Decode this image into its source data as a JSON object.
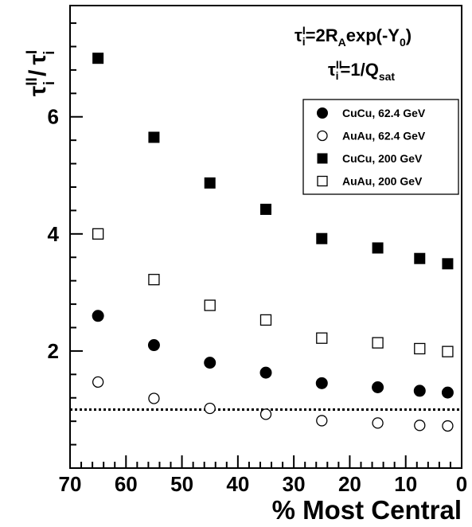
{
  "chart_data": {
    "type": "scatter",
    "xlabel": "% Most Central",
    "ylabel_main": "τ",
    "ylabel_sup_num": "II",
    "ylabel_sub_num": "i",
    "ylabel_slash": "/",
    "ylabel_sup_den": "I",
    "ylabel_sub_den": "i",
    "xlim": [
      70,
      0
    ],
    "ylim": [
      0,
      7.9
    ],
    "x_ticks": [
      70,
      60,
      50,
      40,
      30,
      20,
      10,
      0
    ],
    "x_tick_labels": [
      "70",
      "60",
      "50",
      "40",
      "30",
      "20",
      "10",
      "0"
    ],
    "y_ticks": [
      2,
      4,
      6
    ],
    "y_tick_labels": [
      "2",
      "4",
      "6"
    ],
    "reference_line": {
      "y": 1.0,
      "style": "dotted"
    },
    "annotations": [
      {
        "main": "τ",
        "sup": "I",
        "sub": "i",
        "rest": "=2R",
        "rest_sub": "A",
        "tail": "exp(-Y",
        "tail_sub": "0",
        "end": ")"
      },
      {
        "main": "τ",
        "sup": "II",
        "sub": "i",
        "rest": "=1/Q",
        "rest_sub": "sat"
      }
    ],
    "legend_position": "top-right",
    "x": [
      65,
      55,
      45,
      35,
      25,
      15,
      7.5,
      2.5
    ],
    "series": [
      {
        "name": "CuCu, 62.4 GeV",
        "marker": "filled-circle",
        "values": [
          2.6,
          2.1,
          1.8,
          1.63,
          1.45,
          1.38,
          1.32,
          1.29
        ]
      },
      {
        "name": "AuAu, 62.4 GeV",
        "marker": "open-circle",
        "values": [
          1.47,
          1.19,
          1.02,
          0.92,
          0.81,
          0.77,
          0.73,
          0.72
        ]
      },
      {
        "name": "CuCu, 200 GeV",
        "marker": "filled-square",
        "values": [
          7.0,
          5.65,
          4.87,
          4.42,
          3.92,
          3.76,
          3.58,
          3.49
        ]
      },
      {
        "name": "AuAu, 200 GeV",
        "marker": "open-square",
        "values": [
          4.0,
          3.22,
          2.78,
          2.53,
          2.22,
          2.14,
          2.04,
          1.99
        ]
      }
    ],
    "colors": {
      "marker": "#000000",
      "axis": "#000000",
      "background": "#ffffff"
    }
  }
}
